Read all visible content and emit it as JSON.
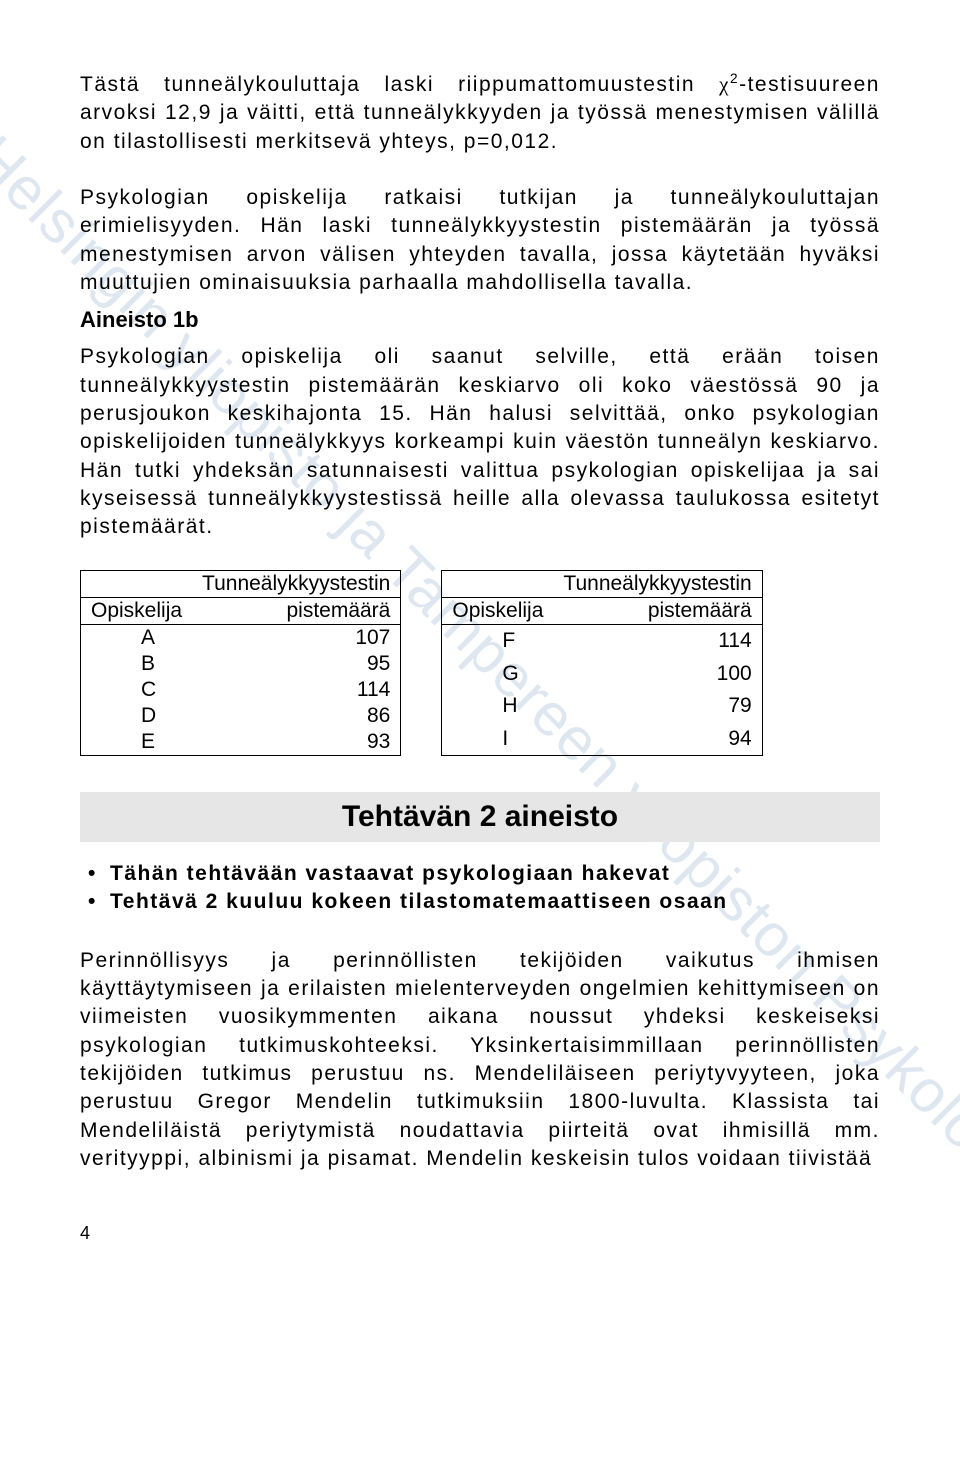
{
  "watermark": "Copyright Helsingin yliopisto ja Tampereen yliopiston Psykologian laitos",
  "para1_pre": "Tästä tunneälykouluttaja laski riippumattomuustestin ",
  "chi": "χ",
  "para1_post": "-testisuureen arvoksi 12,9 ja väitti, että tunneälykkyyden ja työssä menestymisen välillä on tilastollisesti merkitsevä yhteys, p=0,012.",
  "para2": "Psykologian opiskelija ratkaisi tutkijan ja tunneälykouluttajan erimielisyyden. Hän laski tunneälykkyystestin pistemäärän ja työssä menestymisen arvon välisen yhteyden tavalla, jossa käytetään hyväksi muuttujien ominaisuuksia parhaalla mahdollisella tavalla.",
  "sub1": "Aineisto 1b",
  "para3": "Psykologian opiskelija oli saanut selville, että erään toisen tunneälykkyystestin pistemäärän keskiarvo oli koko väestössä 90 ja perusjoukon keskihajonta 15. Hän halusi selvittää, onko psykologian opiskelijoiden tunneälykkyys korkeampi kuin väestön tunneälyn keskiarvo. Hän tutki yhdeksän satunnaisesti valittua psykologian opiskelijaa ja sai kyseisessä tunneälykkyystestissä heille alla olevassa taulukossa esitetyt pistemäärät.",
  "table": {
    "col1": "Opiskelija",
    "col2a": "Tunneälykkyystestin",
    "col2b": "pistemäärä",
    "left": [
      {
        "s": "A",
        "v": "107"
      },
      {
        "s": "B",
        "v": "95"
      },
      {
        "s": "C",
        "v": "114"
      },
      {
        "s": "D",
        "v": "86"
      },
      {
        "s": "E",
        "v": "93"
      }
    ],
    "right": [
      {
        "s": "F",
        "v": "114"
      },
      {
        "s": "G",
        "v": "100"
      },
      {
        "s": "H",
        "v": "79"
      },
      {
        "s": "I",
        "v": "94"
      }
    ]
  },
  "banner": "Tehtävän 2 aineisto",
  "bullet1": "Tähän tehtävään vastaavat psykologiaan hakevat",
  "bullet2": "Tehtävä 2 kuuluu kokeen tilastomatemaattiseen osaan",
  "para4": "Perinnöllisyys ja perinnöllisten tekijöiden vaikutus ihmisen käyttäytymiseen ja erilaisten mielenterveyden ongelmien kehittymiseen on viimeisten vuosikymmenten aikana noussut yhdeksi keskeiseksi psykologian tutkimuskohteeksi. Yksinkertaisimmillaan perinnöllisten tekijöiden tutkimus perustuu ns. Mendeliläiseen periytyvyyteen, joka perustuu Gregor Mendelin tutkimuksiin 1800-luvulta. Klassista tai Mendeliläistä periytymistä noudattavia piirteitä ovat ihmisillä mm. verityyppi, albinismi ja pisamat. Mendelin keskeisin tulos voidaan tiivistää",
  "pagenum": "4"
}
